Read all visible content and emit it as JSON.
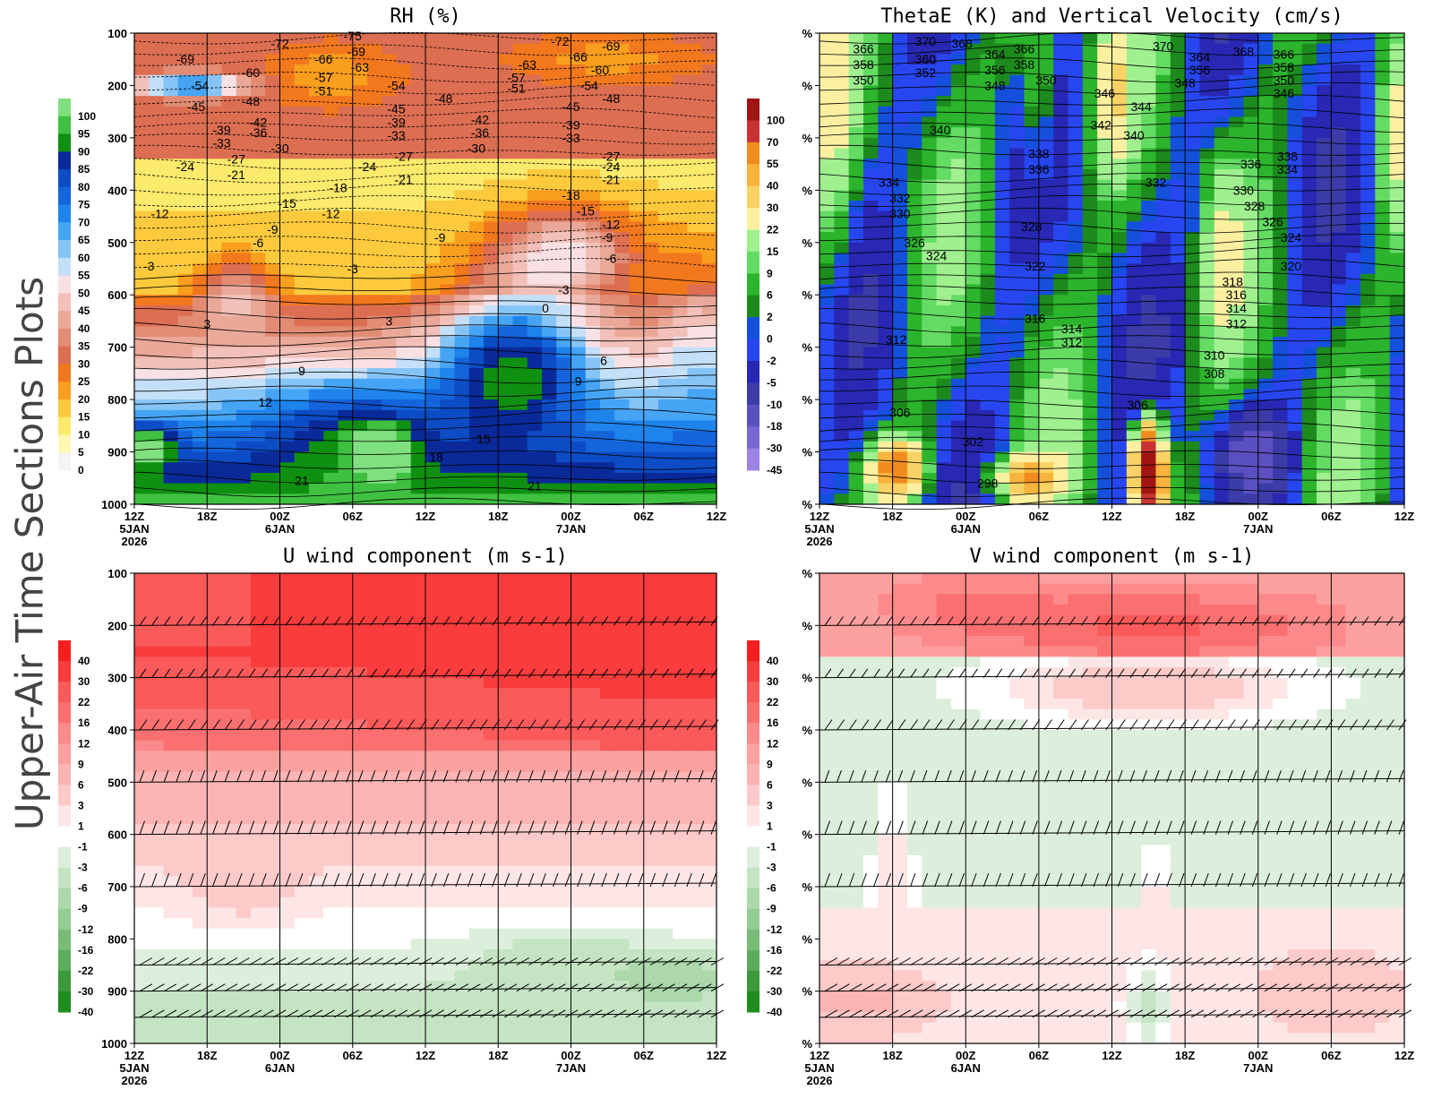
{
  "figure": {
    "side_title": "Upper-Air Time Sections Plots"
  },
  "chart_data": [
    {
      "type": "heatmap",
      "title": "RH (%)",
      "x_ticks": [
        {
          "label": "12Z",
          "sub": [
            "5JAN",
            "2026"
          ]
        },
        {
          "label": "18Z",
          "sub": []
        },
        {
          "label": "00Z",
          "sub": [
            "6JAN"
          ]
        },
        {
          "label": "06Z",
          "sub": []
        },
        {
          "label": "12Z",
          "sub": []
        },
        {
          "label": "18Z",
          "sub": []
        },
        {
          "label": "00Z",
          "sub": [
            "7JAN"
          ]
        },
        {
          "label": "06Z",
          "sub": []
        },
        {
          "label": "12Z",
          "sub": []
        }
      ],
      "y_ticks": [
        "100",
        "200",
        "300",
        "400",
        "500",
        "600",
        "700",
        "800",
        "900",
        "1000"
      ],
      "colorbar": {
        "labels": [
          "100",
          "95",
          "90",
          "85",
          "80",
          "75",
          "70",
          "65",
          "60",
          "55",
          "50",
          "45",
          "40",
          "35",
          "30",
          "25",
          "20",
          "15",
          "10",
          "5",
          "0"
        ],
        "colors": [
          "#80e080",
          "#40c040",
          "#109010",
          "#0a2a9a",
          "#0c4cc4",
          "#1464dc",
          "#1e84ec",
          "#46a4f4",
          "#86c4f6",
          "#c4e0f8",
          "#f8e0e4",
          "#f2c0b8",
          "#eaa898",
          "#e28c74",
          "#dc6e52",
          "#f2781e",
          "#fa9e1e",
          "#fcca3c",
          "#fcea6c",
          "#fef8b4",
          "#f4f4f4"
        ]
      },
      "contour_labels": [
        {
          "text": "-69",
          "x": 0.7,
          "p": 150
        },
        {
          "text": "-54",
          "x": 0.9,
          "p": 200
        },
        {
          "text": "-45",
          "x": 0.85,
          "p": 240
        },
        {
          "text": "-60",
          "x": 1.6,
          "p": 175
        },
        {
          "text": "-48",
          "x": 1.6,
          "p": 230
        },
        {
          "text": "-39",
          "x": 1.2,
          "p": 285
        },
        {
          "text": "-42",
          "x": 1.7,
          "p": 270
        },
        {
          "text": "-36",
          "x": 1.7,
          "p": 290
        },
        {
          "text": "-33",
          "x": 1.2,
          "p": 310
        },
        {
          "text": "-30",
          "x": 2.0,
          "p": 320
        },
        {
          "text": "-27",
          "x": 1.4,
          "p": 340
        },
        {
          "text": "-24",
          "x": 0.7,
          "p": 355
        },
        {
          "text": "-21",
          "x": 1.4,
          "p": 370
        },
        {
          "text": "-72",
          "x": 2.0,
          "p": 120
        },
        {
          "text": "-66",
          "x": 2.6,
          "p": 150
        },
        {
          "text": "-75",
          "x": 3.0,
          "p": 105
        },
        {
          "text": "-69",
          "x": 3.05,
          "p": 135
        },
        {
          "text": "-63",
          "x": 3.1,
          "p": 165
        },
        {
          "text": "-57",
          "x": 2.6,
          "p": 185
        },
        {
          "text": "-51",
          "x": 2.6,
          "p": 210
        },
        {
          "text": "-54",
          "x": 3.6,
          "p": 200
        },
        {
          "text": "-45",
          "x": 3.6,
          "p": 245
        },
        {
          "text": "-39",
          "x": 3.6,
          "p": 270
        },
        {
          "text": "-33",
          "x": 3.6,
          "p": 295
        },
        {
          "text": "-27",
          "x": 3.7,
          "p": 335
        },
        {
          "text": "-24",
          "x": 3.2,
          "p": 355
        },
        {
          "text": "-21",
          "x": 3.7,
          "p": 380
        },
        {
          "text": "-18",
          "x": 2.8,
          "p": 395
        },
        {
          "text": "-15",
          "x": 2.1,
          "p": 425
        },
        {
          "text": "-12",
          "x": 2.7,
          "p": 445
        },
        {
          "text": "-12",
          "x": 0.35,
          "p": 445
        },
        {
          "text": "-9",
          "x": 1.9,
          "p": 475
        },
        {
          "text": "-6",
          "x": 1.7,
          "p": 500
        },
        {
          "text": "-3",
          "x": 0.2,
          "p": 545
        },
        {
          "text": "-3",
          "x": 3.0,
          "p": 550
        },
        {
          "text": "-48",
          "x": 4.25,
          "p": 225
        },
        {
          "text": "-42",
          "x": 4.75,
          "p": 265
        },
        {
          "text": "-36",
          "x": 4.75,
          "p": 290
        },
        {
          "text": "-30",
          "x": 4.7,
          "p": 320
        },
        {
          "text": "-9",
          "x": 4.2,
          "p": 490
        },
        {
          "text": "-63",
          "x": 5.4,
          "p": 160
        },
        {
          "text": "-57",
          "x": 5.25,
          "p": 185
        },
        {
          "text": "-51",
          "x": 5.25,
          "p": 205
        },
        {
          "text": "-72",
          "x": 5.85,
          "p": 115
        },
        {
          "text": "-66",
          "x": 6.1,
          "p": 145
        },
        {
          "text": "-69",
          "x": 6.55,
          "p": 125
        },
        {
          "text": "-60",
          "x": 6.4,
          "p": 170
        },
        {
          "text": "-54",
          "x": 6.25,
          "p": 200
        },
        {
          "text": "-48",
          "x": 6.55,
          "p": 225
        },
        {
          "text": "-45",
          "x": 6.0,
          "p": 240
        },
        {
          "text": "-39",
          "x": 6.0,
          "p": 275
        },
        {
          "text": "-33",
          "x": 6.0,
          "p": 300
        },
        {
          "text": "-27",
          "x": 6.55,
          "p": 335
        },
        {
          "text": "-24",
          "x": 6.55,
          "p": 355
        },
        {
          "text": "-21",
          "x": 6.55,
          "p": 380
        },
        {
          "text": "-18",
          "x": 6.0,
          "p": 410
        },
        {
          "text": "-15",
          "x": 6.2,
          "p": 440
        },
        {
          "text": "-12",
          "x": 6.55,
          "p": 465
        },
        {
          "text": "-9",
          "x": 6.5,
          "p": 490
        },
        {
          "text": "-6",
          "x": 6.55,
          "p": 530
        },
        {
          "text": "-3",
          "x": 5.9,
          "p": 590
        },
        {
          "text": "0",
          "x": 5.65,
          "p": 625
        },
        {
          "text": "3",
          "x": 1.0,
          "p": 655
        },
        {
          "text": "3",
          "x": 3.5,
          "p": 650
        },
        {
          "text": "6",
          "x": 6.45,
          "p": 725
        },
        {
          "text": "9",
          "x": 2.3,
          "p": 745
        },
        {
          "text": "9",
          "x": 6.1,
          "p": 765
        },
        {
          "text": "12",
          "x": 1.8,
          "p": 805
        },
        {
          "text": "15",
          "x": 4.8,
          "p": 875
        },
        {
          "text": "18",
          "x": 4.15,
          "p": 910
        },
        {
          "text": "21",
          "x": 2.3,
          "p": 955
        },
        {
          "text": "21",
          "x": 5.5,
          "p": 965
        }
      ]
    },
    {
      "type": "heatmap",
      "title": "ThetaE (K) and Vertical Velocity (cm/s)",
      "x_ticks": [
        {
          "label": "12Z",
          "sub": [
            "5JAN",
            "2026"
          ]
        },
        {
          "label": "18Z",
          "sub": []
        },
        {
          "label": "00Z",
          "sub": [
            "6JAN"
          ]
        },
        {
          "label": "06Z",
          "sub": []
        },
        {
          "label": "12Z",
          "sub": []
        },
        {
          "label": "18Z",
          "sub": []
        },
        {
          "label": "00Z",
          "sub": [
            "7JAN"
          ]
        },
        {
          "label": "06Z",
          "sub": []
        },
        {
          "label": "12Z",
          "sub": []
        }
      ],
      "y_ticks": [
        "%",
        "%",
        "%",
        "%",
        "%",
        "%",
        "%",
        "%",
        "%",
        "%"
      ],
      "colorbar": {
        "labels": [
          "100",
          "70",
          "55",
          "40",
          "30",
          "22",
          "15",
          "9",
          "6",
          "2",
          "0",
          "-2",
          "-5",
          "-10",
          "-18",
          "-30",
          "-45"
        ],
        "colors": [
          "#a01414",
          "#c83232",
          "#f08c1e",
          "#f8b43c",
          "#f8d264",
          "#fcf0a0",
          "#a0f090",
          "#64dc64",
          "#2cb42c",
          "#1c8a1c",
          "#1450dc",
          "#2846f0",
          "#2828b4",
          "#3c3ca8",
          "#5a50c0",
          "#7866d2",
          "#9c84e6"
        ]
      },
      "contour_labels": [
        {
          "text": "366",
          "x": 0.6,
          "p": 130
        },
        {
          "text": "358",
          "x": 0.6,
          "p": 160
        },
        {
          "text": "350",
          "x": 0.6,
          "p": 190
        },
        {
          "text": "370",
          "x": 1.45,
          "p": 115
        },
        {
          "text": "368",
          "x": 1.95,
          "p": 120
        },
        {
          "text": "360",
          "x": 1.45,
          "p": 150
        },
        {
          "text": "352",
          "x": 1.45,
          "p": 175
        },
        {
          "text": "364",
          "x": 2.4,
          "p": 140
        },
        {
          "text": "366",
          "x": 2.8,
          "p": 130
        },
        {
          "text": "356",
          "x": 2.4,
          "p": 170
        },
        {
          "text": "358",
          "x": 2.8,
          "p": 160
        },
        {
          "text": "348",
          "x": 2.4,
          "p": 200
        },
        {
          "text": "350",
          "x": 3.1,
          "p": 190
        },
        {
          "text": "346",
          "x": 3.9,
          "p": 215
        },
        {
          "text": "344",
          "x": 4.4,
          "p": 240
        },
        {
          "text": "342",
          "x": 3.85,
          "p": 275
        },
        {
          "text": "340",
          "x": 1.65,
          "p": 285
        },
        {
          "text": "340",
          "x": 4.3,
          "p": 295
        },
        {
          "text": "370",
          "x": 4.7,
          "p": 125
        },
        {
          "text": "364",
          "x": 5.2,
          "p": 145
        },
        {
          "text": "356",
          "x": 5.2,
          "p": 170
        },
        {
          "text": "348",
          "x": 5.0,
          "p": 195
        },
        {
          "text": "368",
          "x": 5.8,
          "p": 135
        },
        {
          "text": "366",
          "x": 6.35,
          "p": 140
        },
        {
          "text": "358",
          "x": 6.35,
          "p": 165
        },
        {
          "text": "350",
          "x": 6.35,
          "p": 190
        },
        {
          "text": "346",
          "x": 6.35,
          "p": 215
        },
        {
          "text": "338",
          "x": 3.0,
          "p": 330
        },
        {
          "text": "336",
          "x": 3.0,
          "p": 360
        },
        {
          "text": "338",
          "x": 6.4,
          "p": 335
        },
        {
          "text": "336",
          "x": 5.9,
          "p": 350
        },
        {
          "text": "334",
          "x": 6.4,
          "p": 360
        },
        {
          "text": "332",
          "x": 4.6,
          "p": 385
        },
        {
          "text": "334",
          "x": 0.95,
          "p": 385
        },
        {
          "text": "332",
          "x": 1.1,
          "p": 415
        },
        {
          "text": "330",
          "x": 1.1,
          "p": 445
        },
        {
          "text": "330",
          "x": 5.8,
          "p": 400
        },
        {
          "text": "328",
          "x": 2.9,
          "p": 470
        },
        {
          "text": "328",
          "x": 5.95,
          "p": 430
        },
        {
          "text": "326",
          "x": 6.2,
          "p": 460
        },
        {
          "text": "326",
          "x": 1.3,
          "p": 500
        },
        {
          "text": "324",
          "x": 1.6,
          "p": 525
        },
        {
          "text": "324",
          "x": 6.45,
          "p": 490
        },
        {
          "text": "322",
          "x": 2.95,
          "p": 545
        },
        {
          "text": "320",
          "x": 6.45,
          "p": 545
        },
        {
          "text": "318",
          "x": 5.65,
          "p": 575
        },
        {
          "text": "316",
          "x": 5.7,
          "p": 600
        },
        {
          "text": "316",
          "x": 2.95,
          "p": 645
        },
        {
          "text": "314",
          "x": 5.7,
          "p": 625
        },
        {
          "text": "314",
          "x": 3.45,
          "p": 665
        },
        {
          "text": "312",
          "x": 5.7,
          "p": 655
        },
        {
          "text": "312",
          "x": 1.05,
          "p": 685
        },
        {
          "text": "312",
          "x": 3.45,
          "p": 690
        },
        {
          "text": "310",
          "x": 5.4,
          "p": 715
        },
        {
          "text": "308",
          "x": 5.4,
          "p": 750
        },
        {
          "text": "306",
          "x": 1.1,
          "p": 825
        },
        {
          "text": "306",
          "x": 4.35,
          "p": 810
        },
        {
          "text": "302",
          "x": 2.1,
          "p": 880
        },
        {
          "text": "298",
          "x": 2.3,
          "p": 960
        }
      ]
    },
    {
      "type": "heatmap",
      "title": "U wind component (m s-1)",
      "x_ticks": [
        {
          "label": "12Z",
          "sub": [
            "5JAN",
            "2026"
          ]
        },
        {
          "label": "18Z",
          "sub": []
        },
        {
          "label": "00Z",
          "sub": [
            "6JAN"
          ]
        },
        {
          "label": "06Z",
          "sub": []
        },
        {
          "label": "12Z",
          "sub": []
        },
        {
          "label": "18Z",
          "sub": []
        },
        {
          "label": "00Z",
          "sub": [
            "7JAN"
          ]
        },
        {
          "label": "06Z",
          "sub": []
        },
        {
          "label": "12Z",
          "sub": []
        }
      ],
      "y_ticks": [
        "100",
        "200",
        "300",
        "400",
        "500",
        "600",
        "700",
        "800",
        "900",
        "1000"
      ],
      "colorbar": {
        "labels": [
          "40",
          "30",
          "22",
          "16",
          "12",
          "9",
          "6",
          "3",
          "1",
          "-1",
          "-3",
          "-6",
          "-9",
          "-12",
          "-16",
          "-22",
          "-30",
          "-40"
        ],
        "colors": [
          "#fa1e1e",
          "#fa3c3c",
          "#fa5a5a",
          "#fa7070",
          "#fc8a8a",
          "#fca0a0",
          "#fcb4b4",
          "#fdcaca",
          "#fee6e6",
          "#ffffff",
          "#dcefdc",
          "#c4e4c4",
          "#acd8ac",
          "#94cc94",
          "#78bc78",
          "#5cac5c",
          "#3c9a3c",
          "#1e8c1e"
        ]
      },
      "barb_levels": [
        200,
        300,
        400,
        500,
        600,
        700,
        850,
        900,
        950
      ]
    },
    {
      "type": "heatmap",
      "title": "V wind component (m s-1)",
      "x_ticks": [
        {
          "label": "12Z",
          "sub": [
            "5JAN",
            "2026"
          ]
        },
        {
          "label": "18Z",
          "sub": []
        },
        {
          "label": "00Z",
          "sub": [
            "6JAN"
          ]
        },
        {
          "label": "06Z",
          "sub": []
        },
        {
          "label": "12Z",
          "sub": []
        },
        {
          "label": "18Z",
          "sub": []
        },
        {
          "label": "00Z",
          "sub": [
            "7JAN"
          ]
        },
        {
          "label": "06Z",
          "sub": []
        },
        {
          "label": "12Z",
          "sub": []
        }
      ],
      "y_ticks": [
        "%",
        "%",
        "%",
        "%",
        "%",
        "%",
        "%",
        "%",
        "%",
        "%"
      ],
      "colorbar": {
        "labels": [
          "40",
          "30",
          "22",
          "16",
          "12",
          "9",
          "6",
          "3",
          "1",
          "-1",
          "-3",
          "-6",
          "-9",
          "-12",
          "-16",
          "-22",
          "-30",
          "-40"
        ],
        "colors": [
          "#fa1e1e",
          "#fa3c3c",
          "#fa5a5a",
          "#fa7070",
          "#fc8a8a",
          "#fca0a0",
          "#fcb4b4",
          "#fdcaca",
          "#fee6e6",
          "#ffffff",
          "#dcefdc",
          "#c4e4c4",
          "#acd8ac",
          "#94cc94",
          "#78bc78",
          "#5cac5c",
          "#3c9a3c",
          "#1e8c1e"
        ]
      },
      "barb_levels": [
        200,
        300,
        400,
        500,
        600,
        700,
        850,
        900,
        950
      ]
    }
  ]
}
